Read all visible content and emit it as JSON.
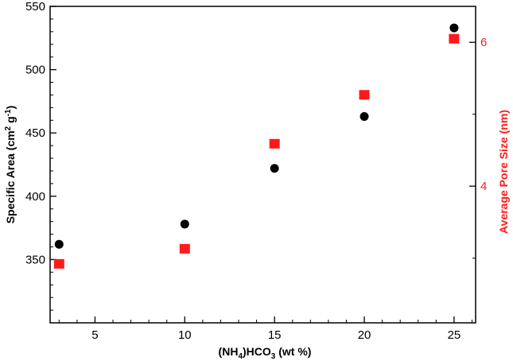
{
  "chart_data": {
    "type": "scatter",
    "title": "",
    "x_axis": {
      "label": "(NH4)HCO3 (wt %)",
      "label_parts": {
        "a": "(NH",
        "sub1": "4",
        "b": ")HCO",
        "sub2": "3",
        "c": " (wt %)"
      },
      "range": [
        2.5,
        26.2
      ],
      "ticks": [
        5,
        10,
        15,
        20,
        25
      ],
      "minor_ticks": [
        3,
        4,
        6,
        7,
        8,
        9,
        11,
        12,
        13,
        14,
        16,
        17,
        18,
        19,
        21,
        22,
        23,
        24,
        26
      ]
    },
    "y_axis_left": {
      "label": "Specific Area (cm2 g-1)",
      "label_parts": {
        "a": "Specific Area (cm",
        "sup1": "2",
        "b": " g",
        "sup2": "-1",
        "c": ")"
      },
      "range": [
        300,
        550
      ],
      "ticks": [
        350,
        400,
        450,
        500,
        550
      ],
      "minor_ticks": [
        310,
        320,
        330,
        340,
        360,
        370,
        380,
        390,
        410,
        420,
        430,
        440,
        460,
        470,
        480,
        490,
        510,
        520,
        530,
        540
      ]
    },
    "y_axis_right": {
      "label": "Average Pore Size (nm)",
      "color": "#ff1a1a",
      "range": [
        2.1,
        6.5
      ],
      "ticks": [
        4,
        6
      ],
      "minor_ticks": [
        3,
        5
      ]
    },
    "series": [
      {
        "axis": "left",
        "marker": "circle",
        "color": "#000000",
        "x": [
          3,
          10,
          15,
          20,
          25
        ],
        "y": [
          362,
          378,
          422,
          463,
          533
        ]
      },
      {
        "axis": "right",
        "marker": "square",
        "color": "#ff1a1a",
        "x": [
          3,
          10,
          15,
          20,
          25
        ],
        "y": [
          2.92,
          3.13,
          4.59,
          5.27,
          6.05
        ]
      }
    ],
    "grid": false,
    "legend": "none"
  }
}
